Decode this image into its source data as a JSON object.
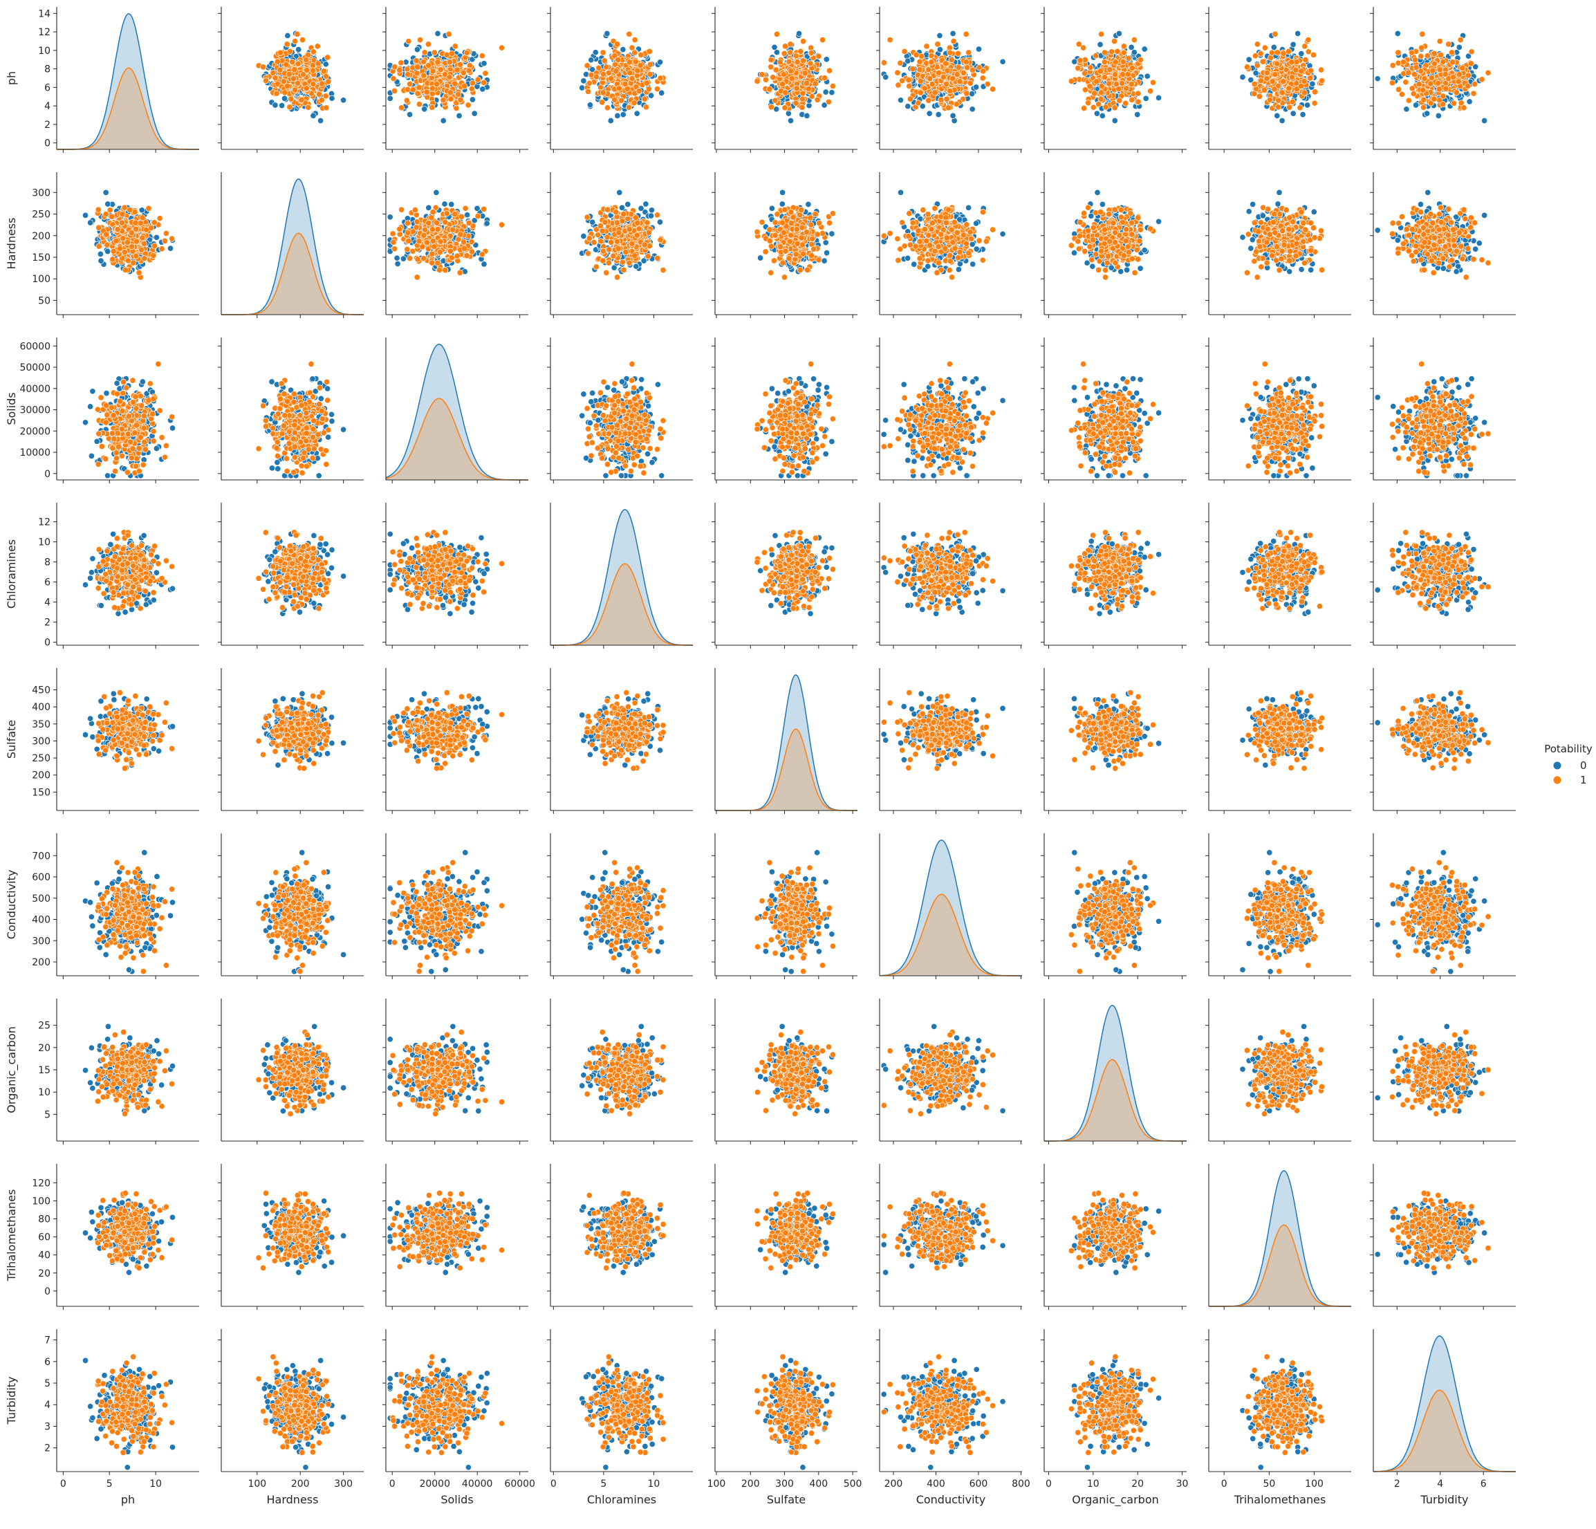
{
  "chart_data": {
    "type": "scatter",
    "kind": "pairplot",
    "hue": "Potability",
    "diagonal": "kde",
    "variables": [
      {
        "name": "ph",
        "lim": [
          -0.7,
          14.7
        ],
        "ticks": [
          0,
          5,
          10,
          15
        ],
        "yticks": [
          0,
          2,
          4,
          6,
          8,
          10,
          12,
          14
        ],
        "mean": 7.08,
        "sd": 1.55
      },
      {
        "name": "Hardness",
        "lim": [
          17,
          347
        ],
        "ticks": [
          100,
          200,
          300
        ],
        "yticks": [
          50,
          100,
          150,
          200,
          250,
          300
        ],
        "mean": 196,
        "sd": 33
      },
      {
        "name": "Solids",
        "lim": [
          -3000,
          64000
        ],
        "ticks": [
          0,
          20000,
          40000,
          60000
        ],
        "yticks": [
          0,
          10000,
          20000,
          30000,
          40000,
          50000,
          60000
        ],
        "mean": 22000,
        "sd": 8770
      },
      {
        "name": "Chloramines",
        "lim": [
          -0.3,
          13.9
        ],
        "ticks": [
          0,
          5,
          10,
          15
        ],
        "yticks": [
          0,
          2,
          4,
          6,
          8,
          10,
          12
        ],
        "mean": 7.12,
        "sd": 1.58
      },
      {
        "name": "Sulfate",
        "lim": [
          96,
          514
        ],
        "ticks": [
          100,
          200,
          300,
          400,
          500
        ],
        "yticks": [
          150,
          200,
          250,
          300,
          350,
          400,
          450
        ],
        "mean": 333,
        "sd": 36
      },
      {
        "name": "Conductivity",
        "lim": [
          135,
          805
        ],
        "ticks": [
          200,
          400,
          600,
          800
        ],
        "yticks": [
          200,
          300,
          400,
          500,
          600,
          700
        ],
        "mean": 426,
        "sd": 80
      },
      {
        "name": "Organic_carbon",
        "lim": [
          -1,
          31
        ],
        "ticks": [
          0,
          10,
          20,
          30
        ],
        "yticks": [
          5,
          10,
          15,
          20,
          25
        ],
        "mean": 14.3,
        "sd": 3.3
      },
      {
        "name": "Trihalomethanes",
        "lim": [
          -17,
          141
        ],
        "ticks": [
          0,
          50,
          100
        ],
        "yticks": [
          0,
          20,
          40,
          60,
          80,
          100,
          120
        ],
        "mean": 66.4,
        "sd": 15.8
      },
      {
        "name": "Turbidity",
        "lim": [
          0.9,
          7.5
        ],
        "ticks": [
          2,
          4,
          6
        ],
        "yticks": [
          2,
          3,
          4,
          5,
          6,
          7
        ],
        "mean": 3.97,
        "sd": 0.78
      }
    ],
    "series": [
      {
        "name": "0",
        "color": "#1f77b4",
        "kde_scale": 1.0
      },
      {
        "name": "1",
        "color": "#ff7f0e",
        "kde_scale": 0.6
      }
    ],
    "legend": {
      "title": "Potability",
      "placement": "right"
    },
    "grid": false,
    "points_per_series": 220
  }
}
